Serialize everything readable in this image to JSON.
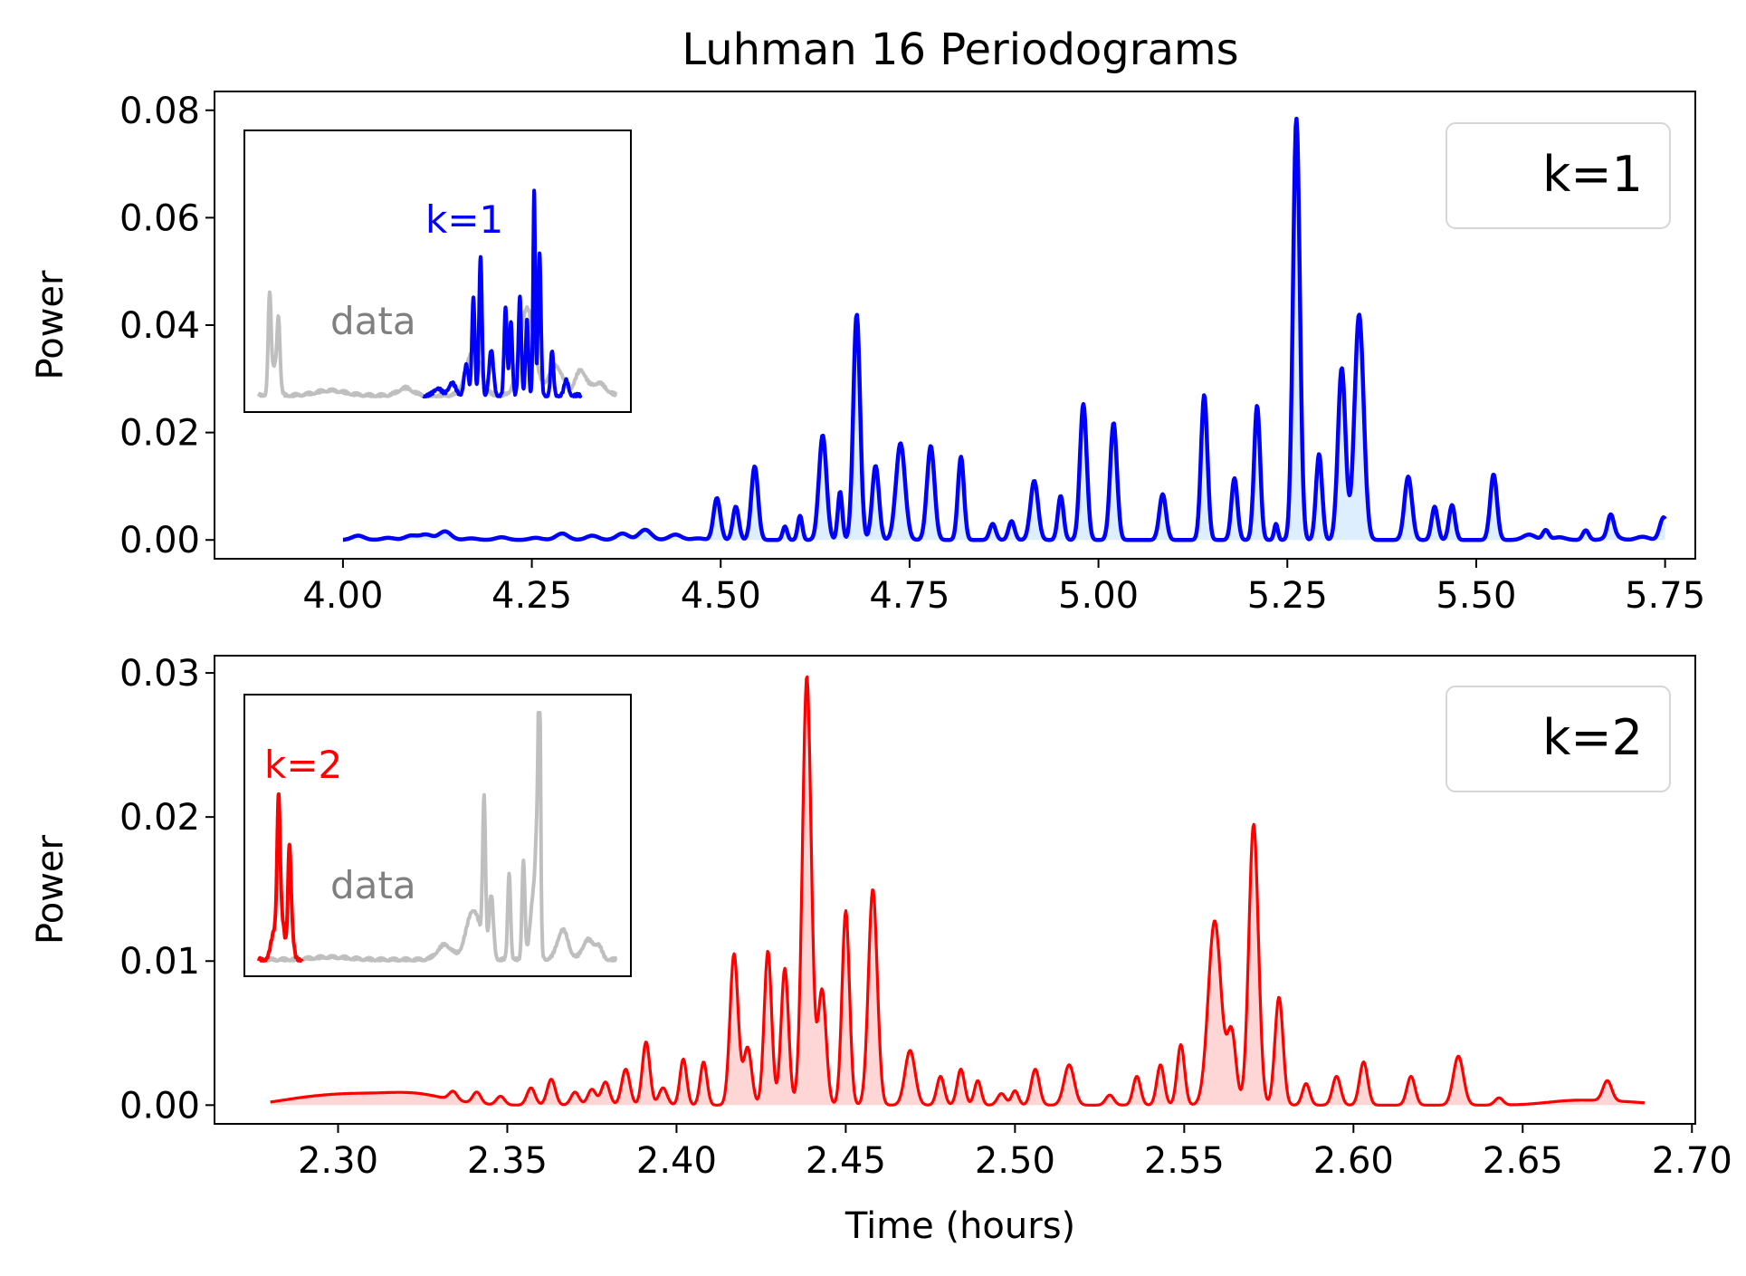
{
  "figure": {
    "title": "Luhman 16 Periodograms",
    "xlabel": "Time (hours)"
  },
  "chart_data": [
    {
      "type": "line",
      "panel": "top",
      "title": "Luhman 16 Periodograms",
      "xlabel": "",
      "ylabel": "Power",
      "xlim": [
        3.83,
        5.79
      ],
      "ylim": [
        -0.0035,
        0.0835
      ],
      "xticks": [
        4.0,
        4.25,
        4.5,
        4.75,
        5.0,
        5.25,
        5.5,
        5.75
      ],
      "xtick_labels": [
        "4.00",
        "4.25",
        "4.50",
        "4.75",
        "5.00",
        "5.25",
        "5.50",
        "5.75"
      ],
      "yticks": [
        0.0,
        0.02,
        0.04,
        0.06,
        0.08
      ],
      "ytick_labels": [
        "0.00",
        "0.02",
        "0.04",
        "0.06",
        "0.08"
      ],
      "legend": {
        "label": "k=1",
        "placement": "upper right"
      },
      "color": "#0000ff",
      "fill_color": "#ddeeff",
      "line_width": 4.5,
      "x_range": [
        4.0,
        5.75
      ],
      "baseline": [
        [
          4.02,
          0.0008
        ],
        [
          4.06,
          0.0004
        ],
        [
          4.09,
          0.0008
        ],
        [
          4.11,
          0.001
        ],
        [
          4.135,
          0.0016
        ],
        [
          4.17,
          0.0003
        ],
        [
          4.21,
          0.0005
        ],
        [
          4.255,
          0.0004
        ],
        [
          4.29,
          0.0012
        ],
        [
          4.33,
          0.0008
        ],
        [
          4.37,
          0.0012
        ],
        [
          4.4,
          0.0019
        ],
        [
          4.44,
          0.001
        ],
        [
          4.47,
          0.0003
        ],
        [
          5.57,
          0.001
        ],
        [
          5.61,
          0.0005
        ],
        [
          5.68,
          0.001
        ],
        [
          5.72,
          0.0006
        ]
      ],
      "peaks": [
        [
          4.495,
          0.0078,
          0.0045
        ],
        [
          4.52,
          0.0062,
          0.004
        ],
        [
          4.545,
          0.0137,
          0.0045
        ],
        [
          4.585,
          0.0025,
          0.003
        ],
        [
          4.605,
          0.0045,
          0.003
        ],
        [
          4.635,
          0.0195,
          0.005
        ],
        [
          4.658,
          0.009,
          0.003
        ],
        [
          4.68,
          0.042,
          0.0045
        ],
        [
          4.705,
          0.0138,
          0.0045
        ],
        [
          4.738,
          0.018,
          0.006
        ],
        [
          4.778,
          0.0175,
          0.005
        ],
        [
          4.818,
          0.0155,
          0.004
        ],
        [
          4.86,
          0.003,
          0.004
        ],
        [
          4.885,
          0.0035,
          0.004
        ],
        [
          4.915,
          0.011,
          0.005
        ],
        [
          4.95,
          0.0082,
          0.0038
        ],
        [
          4.98,
          0.0253,
          0.0045
        ],
        [
          5.02,
          0.0218,
          0.0045
        ],
        [
          5.085,
          0.0085,
          0.0045
        ],
        [
          5.14,
          0.027,
          0.0042
        ],
        [
          5.18,
          0.0115,
          0.004
        ],
        [
          5.21,
          0.025,
          0.004
        ],
        [
          5.235,
          0.003,
          0.0025
        ],
        [
          5.262,
          0.0785,
          0.0045
        ],
        [
          5.292,
          0.016,
          0.004
        ],
        [
          5.322,
          0.032,
          0.005
        ],
        [
          5.345,
          0.042,
          0.006
        ],
        [
          5.41,
          0.0118,
          0.005
        ],
        [
          5.445,
          0.0062,
          0.004
        ],
        [
          5.468,
          0.0065,
          0.004
        ],
        [
          5.523,
          0.0122,
          0.0045
        ],
        [
          5.592,
          0.0018,
          0.004
        ],
        [
          5.645,
          0.0018,
          0.004
        ],
        [
          5.678,
          0.0038,
          0.004
        ],
        [
          5.748,
          0.0042,
          0.005
        ]
      ],
      "inset": {
        "data_label": "data",
        "model_label": "k=1",
        "data_color": "#bfbfbf",
        "model_color": "#0000ff",
        "data_label_color": "#808080",
        "data_range": [
          0.0,
          1.0
        ],
        "model_range": [
          0.46,
          0.9
        ],
        "ylim": [
          0.0,
          1.0
        ],
        "data_peaks": [
          [
            0.03,
            0.38,
            0.004
          ],
          [
            0.055,
            0.25,
            0.004
          ],
          [
            0.045,
            0.12,
            0.01
          ],
          [
            0.2,
            0.02,
            0.04
          ],
          [
            0.41,
            0.03,
            0.02
          ],
          [
            0.6,
            0.18,
            0.02
          ],
          [
            0.75,
            0.35,
            0.02
          ],
          [
            0.83,
            0.12,
            0.02
          ],
          [
            0.9,
            0.1,
            0.015
          ],
          [
            0.95,
            0.05,
            0.02
          ]
        ],
        "model_peaks": [
          [
            0.58,
            0.12,
            0.006
          ],
          [
            0.6,
            0.4,
            0.004
          ],
          [
            0.62,
            0.56,
            0.004
          ],
          [
            0.65,
            0.18,
            0.006
          ],
          [
            0.69,
            0.35,
            0.004
          ],
          [
            0.705,
            0.3,
            0.004
          ],
          [
            0.73,
            0.4,
            0.004
          ],
          [
            0.75,
            0.3,
            0.004
          ],
          [
            0.77,
            0.83,
            0.003
          ],
          [
            0.785,
            0.57,
            0.004
          ],
          [
            0.82,
            0.18,
            0.004
          ],
          [
            0.86,
            0.06,
            0.006
          ],
          [
            0.5,
            0.03,
            0.01
          ],
          [
            0.54,
            0.05,
            0.01
          ]
        ]
      }
    },
    {
      "type": "line",
      "panel": "bottom",
      "title": "",
      "xlabel": "Time (hours)",
      "ylabel": "Power",
      "xlim": [
        2.2635,
        2.701
      ],
      "ylim": [
        -0.0013,
        0.0312
      ],
      "xticks": [
        2.3,
        2.35,
        2.4,
        2.45,
        2.5,
        2.55,
        2.6,
        2.65,
        2.7
      ],
      "xtick_labels": [
        "2.30",
        "2.35",
        "2.40",
        "2.45",
        "2.50",
        "2.55",
        "2.60",
        "2.65",
        "2.70"
      ],
      "yticks": [
        0.0,
        0.01,
        0.02,
        0.03
      ],
      "ytick_labels": [
        "0.00",
        "0.01",
        "0.02",
        "0.03"
      ],
      "legend": {
        "label": "k=2",
        "placement": "upper right"
      },
      "color": "#ff0000",
      "fill_color": "#ffd6d6",
      "line_width": 3.2,
      "x_range": [
        2.28,
        2.686
      ],
      "baseline": [
        [
          2.288,
          0.0003
        ],
        [
          2.296,
          0.0002
        ],
        [
          2.303,
          0.0004
        ],
        [
          2.31,
          0.0002
        ],
        [
          2.317,
          0.0003
        ],
        [
          2.323,
          0.0004
        ],
        [
          2.33,
          0.0002
        ],
        [
          2.665,
          0.0003
        ],
        [
          2.68,
          0.0002
        ]
      ],
      "peaks": [
        [
          2.334,
          0.0006,
          0.0012
        ],
        [
          2.341,
          0.0008,
          0.0012
        ],
        [
          2.348,
          0.0006,
          0.0012
        ],
        [
          2.357,
          0.0012,
          0.0012
        ],
        [
          2.363,
          0.0018,
          0.0012
        ],
        [
          2.37,
          0.0009,
          0.0012
        ],
        [
          2.375,
          0.0011,
          0.0012
        ],
        [
          2.379,
          0.0016,
          0.0012
        ],
        [
          2.385,
          0.0025,
          0.0012
        ],
        [
          2.391,
          0.0044,
          0.0011
        ],
        [
          2.396,
          0.0012,
          0.0012
        ],
        [
          2.402,
          0.0032,
          0.001
        ],
        [
          2.408,
          0.003,
          0.001
        ],
        [
          2.417,
          0.0105,
          0.0012
        ],
        [
          2.421,
          0.004,
          0.0012
        ],
        [
          2.427,
          0.0107,
          0.0011
        ],
        [
          2.432,
          0.0095,
          0.0011
        ],
        [
          2.4385,
          0.0298,
          0.0013
        ],
        [
          2.443,
          0.008,
          0.0012
        ],
        [
          2.45,
          0.0135,
          0.0011
        ],
        [
          2.458,
          0.015,
          0.0013
        ],
        [
          2.469,
          0.0038,
          0.0015
        ],
        [
          2.478,
          0.002,
          0.0011
        ],
        [
          2.484,
          0.0025,
          0.0011
        ],
        [
          2.489,
          0.0017,
          0.001
        ],
        [
          2.496,
          0.0008,
          0.0012
        ],
        [
          2.5,
          0.001,
          0.001
        ],
        [
          2.506,
          0.0025,
          0.0012
        ],
        [
          2.516,
          0.0028,
          0.0015
        ],
        [
          2.528,
          0.0007,
          0.0012
        ],
        [
          2.536,
          0.002,
          0.0011
        ],
        [
          2.543,
          0.0028,
          0.0011
        ],
        [
          2.549,
          0.0042,
          0.0011
        ],
        [
          2.559,
          0.0128,
          0.0019
        ],
        [
          2.564,
          0.005,
          0.0013
        ],
        [
          2.5705,
          0.0195,
          0.0014
        ],
        [
          2.578,
          0.0075,
          0.0012
        ],
        [
          2.586,
          0.0015,
          0.0011
        ],
        [
          2.595,
          0.002,
          0.0012
        ],
        [
          2.603,
          0.003,
          0.0012
        ],
        [
          2.617,
          0.002,
          0.0012
        ],
        [
          2.631,
          0.0034,
          0.0015
        ],
        [
          2.643,
          0.0005,
          0.0012
        ],
        [
          2.675,
          0.0014,
          0.0013
        ]
      ],
      "inset": {
        "data_label": "data",
        "model_label": "k=2",
        "data_color": "#bfbfbf",
        "model_color": "#ff0000",
        "data_label_color": "#808080",
        "data_range": [
          0.0,
          1.0
        ],
        "model_range": [
          0.0,
          0.12
        ],
        "ylim": [
          0.0,
          1.0
        ],
        "data_peaks": [
          [
            0.2,
            0.01,
            0.05
          ],
          [
            0.52,
            0.06,
            0.02
          ],
          [
            0.6,
            0.2,
            0.02
          ],
          [
            0.63,
            0.6,
            0.004
          ],
          [
            0.65,
            0.25,
            0.006
          ],
          [
            0.7,
            0.35,
            0.004
          ],
          [
            0.74,
            0.4,
            0.004
          ],
          [
            0.78,
            0.4,
            0.005
          ],
          [
            0.785,
            0.95,
            0.003
          ],
          [
            0.77,
            0.28,
            0.01
          ],
          [
            0.85,
            0.12,
            0.015
          ],
          [
            0.92,
            0.08,
            0.015
          ],
          [
            0.95,
            0.05,
            0.01
          ]
        ],
        "model_peaks": [
          [
            0.055,
            0.48,
            0.004
          ],
          [
            0.06,
            0.2,
            0.01
          ],
          [
            0.085,
            0.35,
            0.004
          ],
          [
            0.09,
            0.15,
            0.006
          ],
          [
            0.04,
            0.08,
            0.008
          ]
        ]
      }
    }
  ]
}
